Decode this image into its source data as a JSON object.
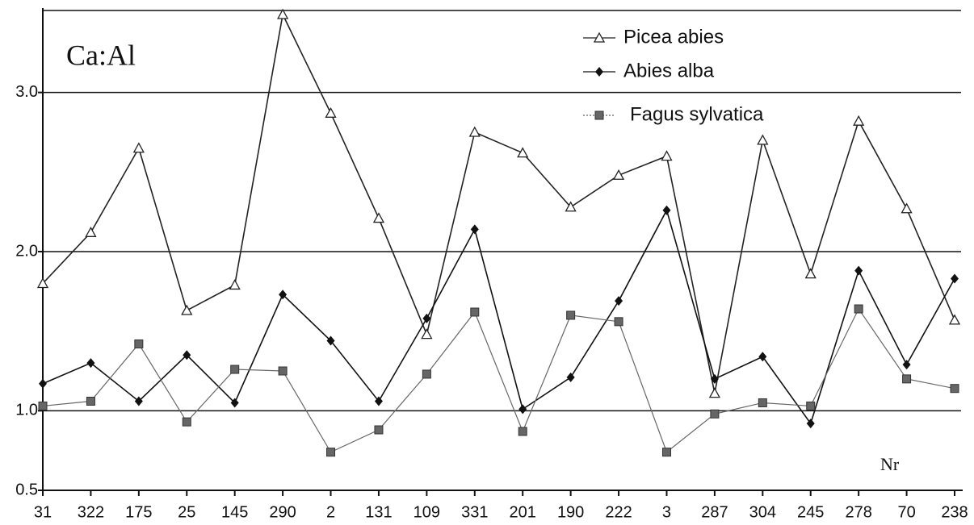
{
  "chart_data": {
    "type": "line",
    "annotations": [
      "Ca:Al",
      "Nr"
    ],
    "categories": [
      "31",
      "322",
      "175",
      "25",
      "145",
      "290",
      "2",
      "131",
      "109",
      "331",
      "201",
      "190",
      "222",
      "3",
      "287",
      "304",
      "245",
      "278",
      "70",
      "238"
    ],
    "series": [
      {
        "name": "Picea abies",
        "color": "#222222",
        "marker": "triangle-open",
        "values": [
          1.8,
          2.12,
          2.65,
          1.63,
          1.79,
          3.49,
          2.87,
          2.21,
          1.48,
          2.75,
          2.62,
          2.28,
          2.48,
          2.6,
          1.11,
          2.7,
          1.86,
          2.82,
          2.27,
          1.57
        ]
      },
      {
        "name": "Abies alba",
        "color": "#111111",
        "marker": "diamond",
        "values": [
          1.17,
          1.3,
          1.06,
          1.35,
          1.05,
          1.73,
          1.44,
          1.06,
          1.58,
          2.14,
          1.01,
          1.21,
          1.69,
          2.26,
          1.2,
          1.34,
          0.92,
          1.88,
          1.29,
          1.83
        ]
      },
      {
        "name": "Fagus sylvatica",
        "color": "#666666",
        "marker": "square",
        "values": [
          1.03,
          1.06,
          1.42,
          0.93,
          1.26,
          1.25,
          0.74,
          0.88,
          1.23,
          1.62,
          0.87,
          1.6,
          1.56,
          0.74,
          0.98,
          1.05,
          1.03,
          1.64,
          1.2,
          1.14
        ]
      }
    ],
    "ylim": [
      0.5,
      3.5
    ],
    "yticks": [
      0.5,
      {
        "value": 1,
        "label": "1.0"
      },
      {
        "value": 2,
        "label": "2.0"
      },
      {
        "value": 3,
        "label": "3.0"
      }
    ],
    "grid": true
  }
}
